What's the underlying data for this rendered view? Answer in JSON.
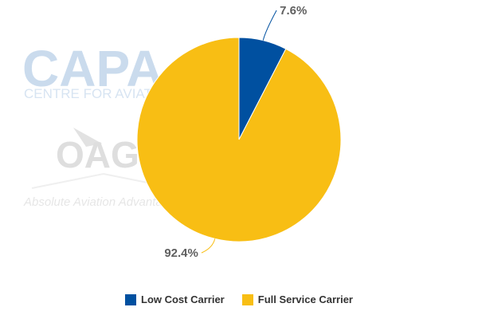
{
  "watermark": {
    "brand1": "CAPA",
    "brand1_sub": "CENTRE FOR AVIATION",
    "brand2": "OAG",
    "brand2_sub": "Absolute Aviation Advantage"
  },
  "chart_data": {
    "type": "pie",
    "categories": [
      "Low Cost Carrier",
      "Full Service Carrier"
    ],
    "values": [
      7.6,
      92.4
    ],
    "labels": [
      "7.6%",
      "92.4%"
    ],
    "colors": [
      "#0050a0",
      "#f8be14"
    ],
    "legend_position": "bottom"
  }
}
